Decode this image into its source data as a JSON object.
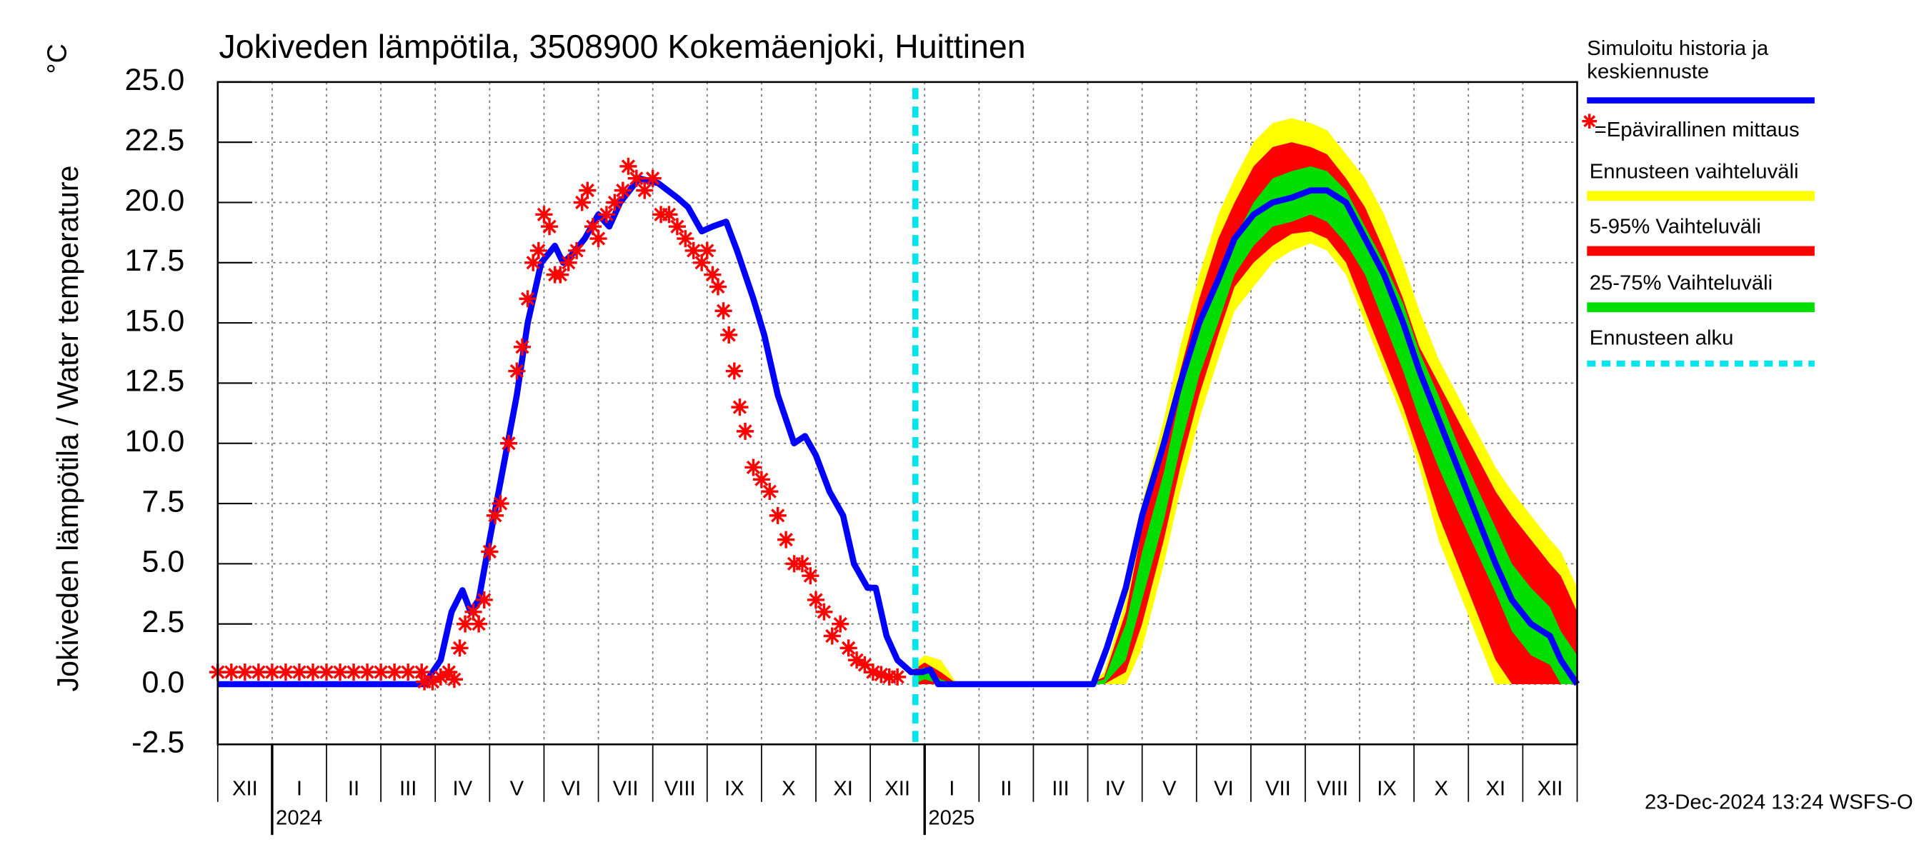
{
  "chart_data": {
    "type": "line",
    "title": "Jokiveden lämpötila, 3508900 Kokemäenjoki, Huittinen",
    "ylabel": "Jokiveden lämpötila / Water temperature",
    "yunit": "°C",
    "footer": "23-Dec-2024 13:24 WSFS-O",
    "xlim": [
      0,
      25
    ],
    "xticks": [
      0,
      1,
      2,
      3,
      4,
      5,
      6,
      7,
      8,
      9,
      10,
      11,
      12,
      13,
      14,
      15,
      16,
      17,
      18,
      19,
      20,
      21,
      22,
      23,
      24,
      25
    ],
    "categories": [
      "XII",
      "I",
      "II",
      "III",
      "IV",
      "V",
      "VI",
      "VII",
      "VIII",
      "IX",
      "X",
      "XI",
      "XII",
      "I",
      "II",
      "III",
      "IV",
      "V",
      "VI",
      "VII",
      "VIII",
      "IX",
      "X",
      "XI",
      "XII"
    ],
    "year_labels": [
      {
        "value": 1,
        "label": "2024"
      },
      {
        "value": 13,
        "label": "2025"
      }
    ],
    "ylim": [
      -2.5,
      25
    ],
    "yticks": [
      {
        "value": -2.5,
        "label": "-2.5"
      },
      {
        "value": 0,
        "label": "0.0"
      },
      {
        "value": 2.5,
        "label": "2.5"
      },
      {
        "value": 5,
        "label": "5.0"
      },
      {
        "value": 7.5,
        "label": "7.5"
      },
      {
        "value": 10,
        "label": "10.0"
      },
      {
        "value": 12.5,
        "label": "12.5"
      },
      {
        "value": 15,
        "label": "15.0"
      },
      {
        "value": 17.5,
        "label": "17.5"
      },
      {
        "value": 20,
        "label": "20.0"
      },
      {
        "value": 22.5,
        "label": "22.5"
      },
      {
        "value": 25,
        "label": "25.0"
      }
    ],
    "grid": true,
    "forecast_x": [
      12.8,
      13.0,
      13.3,
      13.6,
      14,
      15,
      16,
      16.3,
      16.7,
      17,
      17.4,
      17.7,
      18.05,
      18.4,
      18.7,
      19.05,
      19.4,
      19.75,
      20.1,
      20.4,
      20.75,
      21.1,
      21.45,
      21.8,
      22.1,
      22.45,
      22.8,
      23.15,
      23.5,
      23.8,
      24.15,
      24.5,
      24.7,
      25
    ],
    "bands": [
      {
        "name": "Ennusteen vaihteluväli",
        "color": "#ffff00",
        "upper": [
          0.8,
          1.2,
          1.0,
          0,
          0,
          0,
          0,
          0.5,
          3.5,
          7.5,
          11,
          14,
          17,
          19.5,
          21,
          22.5,
          23.3,
          23.5,
          23.3,
          23,
          22,
          21,
          19.5,
          17.5,
          15.5,
          13.5,
          12,
          10.5,
          9,
          8,
          7,
          6,
          5.5,
          4
        ],
        "lower": [
          0,
          0,
          0,
          0,
          0,
          0,
          0,
          0,
          0,
          1.5,
          5,
          8,
          11,
          13.5,
          15.5,
          16.5,
          17.5,
          18,
          18.3,
          18,
          17,
          15,
          13,
          11,
          9,
          6,
          4,
          2,
          0,
          0,
          0,
          0,
          0,
          0
        ]
      },
      {
        "name": "5-95% Vaihteluväli",
        "color": "#ff0000",
        "upper": [
          0.6,
          0.9,
          0.5,
          0,
          0,
          0,
          0,
          0.3,
          3,
          6.5,
          10,
          13,
          16,
          18.5,
          20,
          21.5,
          22.3,
          22.5,
          22.3,
          22,
          21,
          19.8,
          18,
          16,
          14,
          12.5,
          11,
          9.5,
          8,
          7,
          6,
          5,
          4.5,
          3
        ],
        "lower": [
          0,
          0,
          0,
          0,
          0,
          0,
          0,
          0,
          0.5,
          2.5,
          6,
          9,
          12,
          14.5,
          16.5,
          17.5,
          18.2,
          18.7,
          18.8,
          18.5,
          17.5,
          15.5,
          13.5,
          11.5,
          9.5,
          7,
          5,
          3,
          1,
          0,
          0,
          0,
          0,
          0
        ]
      },
      {
        "name": "25-75% Vaihteluväli",
        "color": "#00dd00",
        "upper": [
          0.5,
          0.7,
          0.2,
          0,
          0,
          0,
          0,
          0.2,
          2.5,
          5.5,
          8.8,
          12,
          14.8,
          17,
          18.5,
          20,
          21,
          21.3,
          21.5,
          21.3,
          20.5,
          19,
          17.5,
          15.8,
          13.8,
          12,
          10,
          8.2,
          6.5,
          5,
          4,
          3.2,
          2.2,
          1.2
        ],
        "lower": [
          0,
          0.2,
          0,
          0,
          0,
          0,
          0,
          0,
          1,
          3.5,
          6.8,
          9.8,
          12.8,
          15,
          17,
          18.2,
          19,
          19.2,
          19.5,
          19.2,
          18.3,
          17,
          15,
          13,
          11,
          9,
          7.2,
          5.5,
          3.8,
          2.2,
          1.2,
          0.8,
          0,
          0
        ]
      }
    ],
    "series": [
      {
        "name": "Simuloitu historia ja keskiennuste",
        "color": "#0000ff",
        "x": [
          0,
          3.8,
          4.1,
          4.3,
          4.5,
          4.65,
          4.8,
          5.0,
          5.25,
          5.5,
          5.7,
          5.95,
          6.2,
          6.35,
          6.5,
          6.75,
          7.0,
          7.2,
          7.4,
          7.75,
          8.1,
          8.45,
          8.65,
          8.9,
          9.1,
          9.35,
          9.55,
          9.85,
          10.05,
          10.3,
          10.6,
          10.8,
          11.0,
          11.25,
          11.5,
          11.7,
          11.95,
          12.1,
          12.3,
          12.5,
          12.75,
          12.95,
          13.1,
          13.25,
          16.1,
          16.35,
          16.7,
          17.0,
          17.4,
          17.7,
          18.05,
          18.4,
          18.7,
          19.05,
          19.4,
          19.75,
          20.1,
          20.4,
          20.75,
          21.1,
          21.45,
          21.8,
          22.1,
          22.45,
          22.8,
          23.15,
          23.5,
          23.8,
          24.15,
          24.5,
          24.7,
          25
        ],
        "values": [
          0,
          0,
          1.0,
          3.0,
          3.9,
          3.0,
          3.5,
          6,
          9,
          12,
          15,
          17.5,
          18.2,
          17.5,
          17.8,
          18.5,
          19.5,
          19.0,
          20.0,
          21.0,
          20.8,
          20.2,
          19.8,
          18.8,
          19.0,
          19.2,
          18.0,
          16.0,
          14.5,
          12.0,
          10.0,
          10.3,
          9.5,
          8.0,
          7.0,
          5.0,
          4.0,
          4.0,
          2.0,
          1.0,
          0.5,
          0.5,
          0.6,
          0,
          0,
          1.5,
          4,
          7,
          10,
          12.5,
          15,
          16.8,
          18.5,
          19.5,
          20,
          20.2,
          20.5,
          20.5,
          20,
          18.5,
          17,
          15,
          13,
          11,
          9,
          7,
          5,
          3.5,
          2.5,
          2,
          1,
          0
        ]
      },
      {
        "name": "=Epävirallinen mittaus",
        "color": "#ff0000",
        "marker": "star",
        "x": [
          0,
          0.25,
          0.5,
          0.75,
          1,
          1.25,
          1.5,
          1.75,
          2,
          2.25,
          2.5,
          2.75,
          3,
          3.25,
          3.5,
          3.75,
          3.8,
          3.95,
          4.1,
          4.25,
          4.35,
          4.45,
          4.55,
          4.7,
          4.8,
          4.9,
          5.0,
          5.1,
          5.2,
          5.35,
          5.5,
          5.6,
          5.7,
          5.8,
          5.9,
          6.0,
          6.1,
          6.2,
          6.3,
          6.45,
          6.6,
          6.7,
          6.8,
          6.9,
          7.0,
          7.15,
          7.3,
          7.45,
          7.55,
          7.7,
          7.85,
          8.0,
          8.15,
          8.3,
          8.45,
          8.6,
          8.75,
          8.9,
          9.0,
          9.1,
          9.2,
          9.3,
          9.4,
          9.5,
          9.6,
          9.7,
          9.85,
          10.0,
          10.15,
          10.3,
          10.45,
          10.6,
          10.75,
          10.9,
          11.0,
          11.15,
          11.3,
          11.45,
          11.6,
          11.75,
          11.9,
          12.05,
          12.2,
          12.35,
          12.5
        ],
        "values": [
          0.5,
          0.5,
          0.5,
          0.5,
          0.5,
          0.5,
          0.5,
          0.5,
          0.5,
          0.5,
          0.5,
          0.5,
          0.5,
          0.5,
          0.5,
          0.5,
          0.1,
          0.1,
          0.3,
          0.5,
          0.2,
          1.5,
          2.5,
          3,
          2.5,
          3.5,
          5.5,
          7,
          7.5,
          10,
          13,
          14,
          16,
          17.5,
          18,
          19.5,
          19,
          17,
          17,
          17.5,
          18,
          20,
          20.5,
          19,
          18.5,
          19.5,
          20,
          20.5,
          21.5,
          21,
          20.5,
          21,
          19.5,
          19.5,
          19,
          18.5,
          18,
          17.5,
          18,
          17,
          16.5,
          15.5,
          14.5,
          13,
          11.5,
          10.5,
          9,
          8.5,
          8,
          7,
          6,
          5,
          5,
          4.5,
          3.5,
          3,
          2,
          2.5,
          1.5,
          1,
          0.8,
          0.5,
          0.4,
          0.3,
          0.3
        ]
      }
    ],
    "forecast_start": {
      "x": 12.83,
      "name": "Ennusteen alku",
      "color": "#00e5ee"
    }
  }
}
